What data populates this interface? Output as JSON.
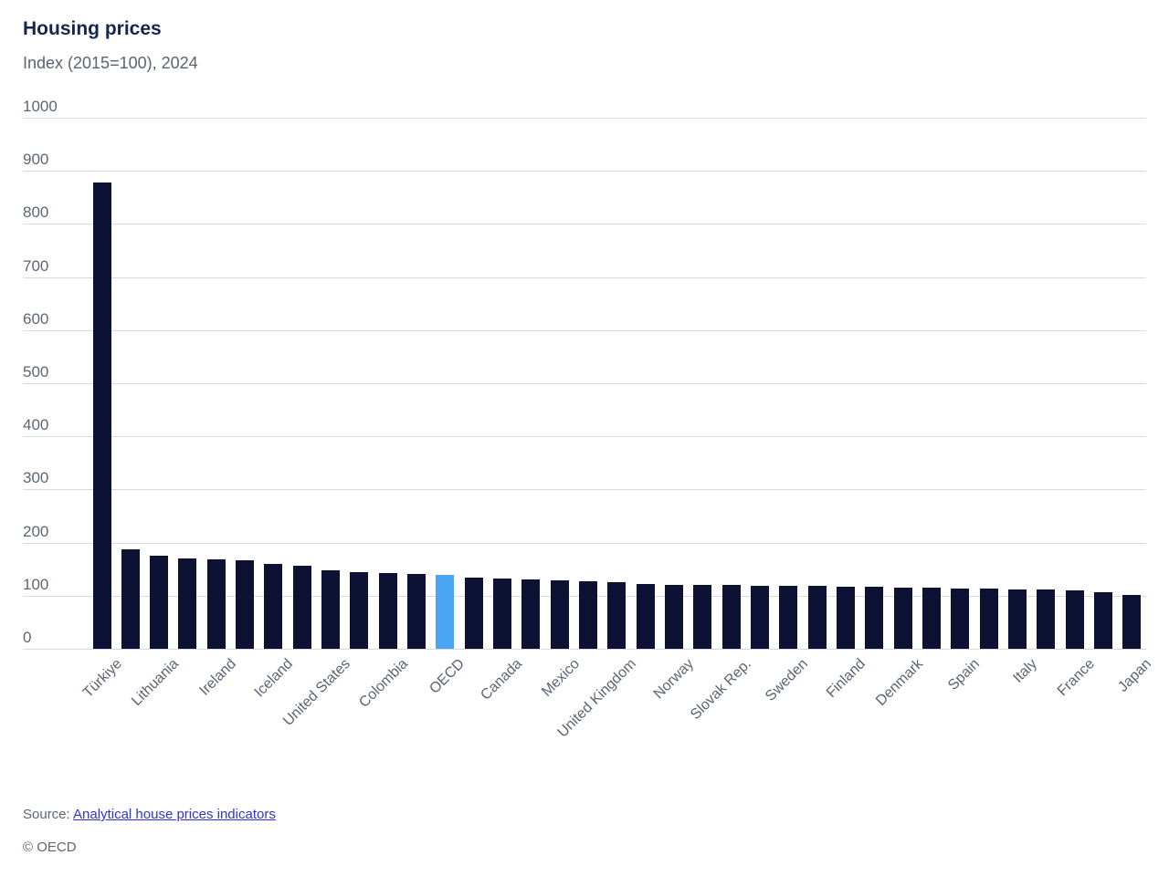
{
  "chart_data": {
    "type": "bar",
    "title": "Housing prices",
    "subtitle": "Index (2015=100), 2024",
    "ylim": [
      0,
      1000
    ],
    "ytick_interval": 100,
    "ytick_labels": [
      "0",
      "100",
      "200",
      "300",
      "400",
      "500",
      "600",
      "700",
      "800",
      "900",
      "1000"
    ],
    "grid": "horizontal",
    "legend": "none",
    "categories": [
      "Türkiye",
      "",
      "Lithuania",
      "",
      "Ireland",
      "",
      "Iceland",
      "",
      "United States",
      "",
      "Colombia",
      "",
      "OECD",
      "",
      "Canada",
      "",
      "Mexico",
      "",
      "United Kingdom",
      "",
      "Norway",
      "",
      "Slovak Rep.",
      "",
      "Sweden",
      "",
      "Finland",
      "",
      "Denmark",
      "",
      "Spain",
      "",
      "Italy",
      "",
      "France",
      "",
      "Japan"
    ],
    "values": [
      878,
      188,
      175,
      170,
      168,
      167,
      160,
      157,
      148,
      144,
      142,
      141,
      140,
      134,
      132,
      130,
      129,
      128,
      126,
      122,
      121,
      121,
      120,
      119,
      118,
      118,
      117,
      117,
      116,
      115,
      114,
      113,
      111,
      111,
      110,
      106,
      101
    ],
    "highlight_index": 12,
    "highlight_label": "OECD",
    "colors": {
      "bar": "#0d1133",
      "highlight_bar": "#4aa6f5",
      "gridline": "#d7dade",
      "title_text": "#14264c",
      "axis_text": "#5d6673",
      "link": "#3134d2"
    }
  },
  "footer": {
    "source_prefix": "Source: ",
    "source_link": "Analytical house prices indicators",
    "copyright": "© OECD"
  }
}
